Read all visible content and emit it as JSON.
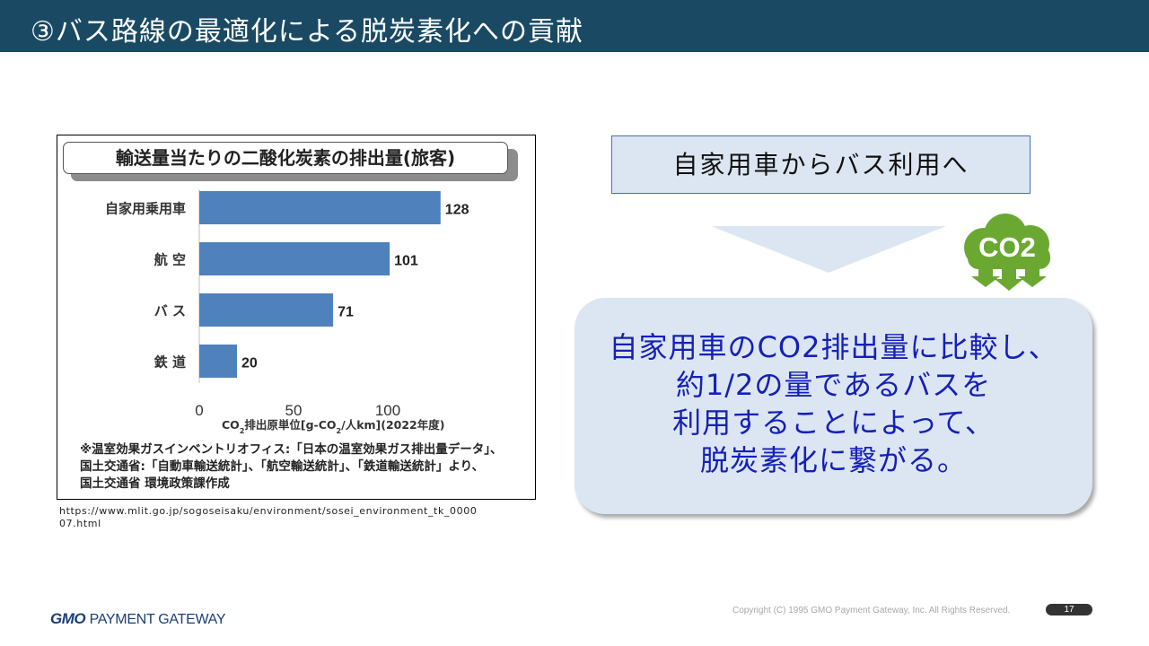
{
  "header": {
    "title": "③バス路線の最適化による脱炭素化への貢献"
  },
  "chart_data": {
    "type": "bar",
    "orientation": "horizontal",
    "title": "輸送量当たりの二酸化炭素の排出量(旅客)",
    "categories": [
      "自家用乗用車",
      "航 空",
      "バ ス",
      "鉄 道"
    ],
    "values": [
      128,
      101,
      71,
      20
    ],
    "xticks": [
      "0",
      "50",
      "100"
    ],
    "xlim": [
      0,
      150
    ],
    "xlabel": {
      "part1": "CO",
      "sub1": "2",
      "part2": "排出原単位[g-CO",
      "sub2": "2",
      "part3": "/人km](2022年度)"
    },
    "bar_color": "#4f81bd",
    "notes": [
      "※温室効果ガスインベントリオフィス:「日本の温室効果ガス排出量データ」、",
      "国土交通省:「自動車輸送統計」、「航空輸送統計」、「鉄道輸送統計」より、",
      "国土交通省 環境政策課作成"
    ]
  },
  "source": {
    "url": "https://www.mlit.go.jp/sogoseisaku/environment/sosei_environment_tk_000007.html"
  },
  "right": {
    "heading": "自家用車からバス利用へ",
    "icon": "co2-cloud-icon",
    "icon_label": "CO2",
    "icon_color": "#6aa832",
    "callout_lines": [
      "自家用車のCO2排出量に比較し、",
      "約1/2の量であるバスを",
      "利用することによって、",
      "脱炭素化に繋がる。"
    ],
    "callout_text_color": "#1520b8",
    "callout_bg": "#dce6f2"
  },
  "footer": {
    "logo_gmo": "GMO",
    "logo_rest": "PAYMENT GATEWAY",
    "copyright": "Copyright (C) 1995 GMO Payment Gateway, Inc. All Rights Reserved.",
    "page_number": "17"
  }
}
